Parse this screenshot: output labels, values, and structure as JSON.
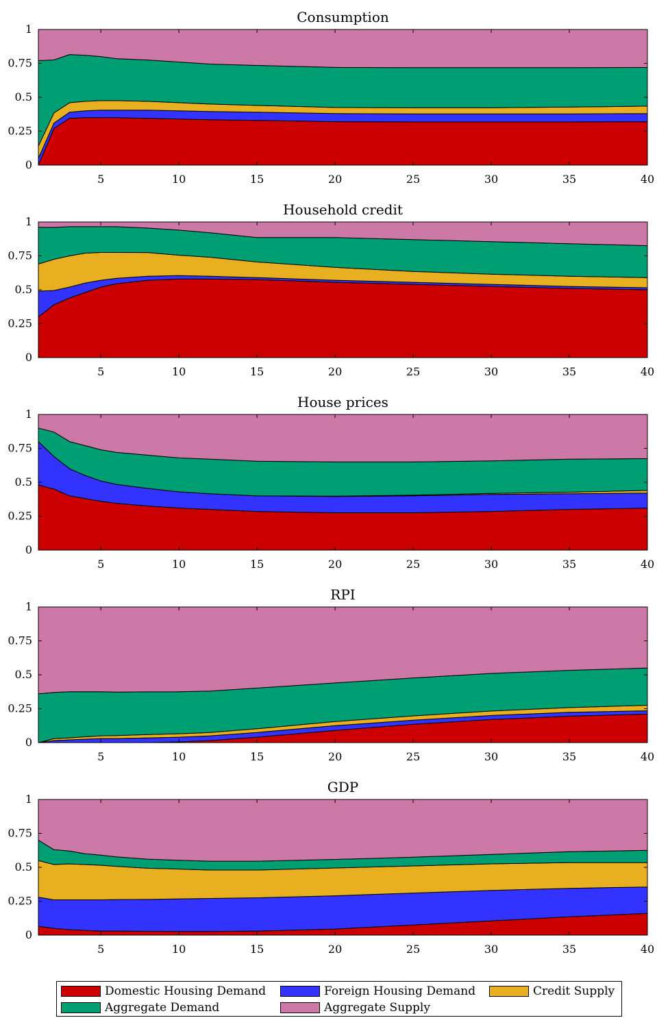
{
  "colors": {
    "Domestic Housing Demand": "#cc0000",
    "Foreign Housing Demand": "#3333ff",
    "Credit Supply": "#e8b020",
    "Aggregate Demand": "#009e73",
    "Aggregate Supply": "#cc79a7"
  },
  "legend": {
    "items": [
      {
        "label": "Domestic Housing Demand"
      },
      {
        "label": "Foreign Housing Demand"
      },
      {
        "label": "Credit Supply"
      },
      {
        "label": "Aggregate Demand"
      },
      {
        "label": "Aggregate Supply"
      }
    ]
  },
  "chart_data": [
    {
      "type": "area",
      "title": "Consumption",
      "xlim": [
        1,
        40
      ],
      "ylim": [
        0,
        1
      ],
      "x": [
        1,
        2,
        3,
        4,
        5,
        6,
        8,
        10,
        12,
        15,
        20,
        25,
        30,
        35,
        40
      ],
      "xticks": [
        5,
        10,
        15,
        20,
        25,
        30,
        35,
        40
      ],
      "yticks": [
        0,
        0.25,
        0.5,
        0.75,
        1
      ],
      "ytick_labels": [
        "0",
        "0.25",
        "0.5",
        "0.75",
        "1"
      ],
      "series": [
        {
          "name": "Domestic Housing Demand",
          "values": [
            0.0,
            0.27,
            0.345,
            0.35,
            0.35,
            0.35,
            0.345,
            0.34,
            0.335,
            0.33,
            0.32,
            0.318,
            0.318,
            0.318,
            0.32
          ]
        },
        {
          "name": "Foreign Housing Demand",
          "values": [
            0.05,
            0.04,
            0.045,
            0.05,
            0.055,
            0.055,
            0.06,
            0.06,
            0.06,
            0.06,
            0.06,
            0.06,
            0.06,
            0.06,
            0.06
          ]
        },
        {
          "name": "Credit Supply",
          "values": [
            0.09,
            0.075,
            0.07,
            0.07,
            0.07,
            0.07,
            0.065,
            0.06,
            0.055,
            0.05,
            0.045,
            0.045,
            0.045,
            0.05,
            0.055
          ]
        },
        {
          "name": "Aggregate Demand",
          "values": [
            0.63,
            0.39,
            0.355,
            0.34,
            0.325,
            0.31,
            0.305,
            0.3,
            0.295,
            0.295,
            0.295,
            0.295,
            0.295,
            0.29,
            0.285
          ]
        },
        {
          "name": "Aggregate Supply",
          "values": [
            0.23,
            0.225,
            0.185,
            0.19,
            0.2,
            0.215,
            0.225,
            0.24,
            0.255,
            0.265,
            0.28,
            0.282,
            0.282,
            0.282,
            0.28
          ]
        }
      ]
    },
    {
      "type": "area",
      "title": "Household credit",
      "xlim": [
        1,
        40
      ],
      "ylim": [
        0,
        1
      ],
      "x": [
        1,
        2,
        3,
        4,
        5,
        6,
        8,
        10,
        12,
        15,
        20,
        25,
        30,
        35,
        40
      ],
      "xticks": [
        5,
        10,
        15,
        20,
        25,
        30,
        35,
        40
      ],
      "yticks": [
        0,
        0.25,
        0.5,
        0.75,
        1
      ],
      "ytick_labels": [
        "0",
        "0.25",
        "0.5",
        "0.75",
        "1"
      ],
      "series": [
        {
          "name": "Domestic Housing Demand",
          "values": [
            0.3,
            0.39,
            0.44,
            0.48,
            0.52,
            0.545,
            0.57,
            0.58,
            0.58,
            0.575,
            0.555,
            0.54,
            0.525,
            0.51,
            0.5
          ]
        },
        {
          "name": "Foreign Housing Demand",
          "values": [
            0.19,
            0.105,
            0.08,
            0.07,
            0.05,
            0.04,
            0.03,
            0.025,
            0.02,
            0.015,
            0.015,
            0.015,
            0.015,
            0.015,
            0.015
          ]
        },
        {
          "name": "Credit Supply",
          "values": [
            0.2,
            0.23,
            0.23,
            0.22,
            0.205,
            0.19,
            0.175,
            0.15,
            0.14,
            0.115,
            0.095,
            0.08,
            0.075,
            0.075,
            0.075
          ]
        },
        {
          "name": "Aggregate Demand",
          "values": [
            0.27,
            0.235,
            0.215,
            0.195,
            0.19,
            0.19,
            0.18,
            0.185,
            0.18,
            0.18,
            0.22,
            0.235,
            0.24,
            0.24,
            0.235
          ]
        },
        {
          "name": "Aggregate Supply",
          "values": [
            0.04,
            0.04,
            0.035,
            0.035,
            0.035,
            0.035,
            0.045,
            0.06,
            0.08,
            0.115,
            0.115,
            0.13,
            0.145,
            0.16,
            0.175
          ]
        }
      ]
    },
    {
      "type": "area",
      "title": "House prices",
      "xlim": [
        1,
        40
      ],
      "ylim": [
        0,
        1
      ],
      "x": [
        1,
        2,
        3,
        4,
        5,
        6,
        8,
        10,
        12,
        15,
        20,
        25,
        30,
        35,
        40
      ],
      "xticks": [
        5,
        10,
        15,
        20,
        25,
        30,
        35,
        40
      ],
      "yticks": [
        0,
        0.25,
        0.5,
        0.75,
        1
      ],
      "ytick_labels": [
        "0",
        "0.25",
        "0.5",
        "0.75",
        "1"
      ],
      "series": [
        {
          "name": "Domestic Housing Demand",
          "values": [
            0.48,
            0.45,
            0.4,
            0.38,
            0.36,
            0.345,
            0.325,
            0.31,
            0.3,
            0.285,
            0.275,
            0.275,
            0.285,
            0.3,
            0.31
          ]
        },
        {
          "name": "Foreign Housing Demand",
          "values": [
            0.32,
            0.24,
            0.2,
            0.17,
            0.15,
            0.14,
            0.13,
            0.12,
            0.115,
            0.115,
            0.12,
            0.125,
            0.125,
            0.115,
            0.11
          ]
        },
        {
          "name": "Credit Supply",
          "values": [
            0.0,
            0.0,
            0.0,
            0.0,
            0.0,
            0.0,
            0.0,
            0.0,
            0.0,
            0.0,
            0.003,
            0.005,
            0.008,
            0.012,
            0.02
          ]
        },
        {
          "name": "Aggregate Demand",
          "values": [
            0.1,
            0.18,
            0.2,
            0.22,
            0.23,
            0.235,
            0.245,
            0.25,
            0.255,
            0.255,
            0.252,
            0.245,
            0.24,
            0.243,
            0.235
          ]
        },
        {
          "name": "Aggregate Supply",
          "values": [
            0.1,
            0.13,
            0.2,
            0.23,
            0.26,
            0.28,
            0.3,
            0.32,
            0.33,
            0.345,
            0.35,
            0.35,
            0.342,
            0.33,
            0.325
          ]
        }
      ]
    },
    {
      "type": "area",
      "title": "RPI",
      "xlim": [
        1,
        40
      ],
      "ylim": [
        0,
        1
      ],
      "x": [
        1,
        2,
        3,
        4,
        5,
        6,
        8,
        10,
        12,
        15,
        20,
        25,
        30,
        35,
        40
      ],
      "xticks": [
        5,
        10,
        15,
        20,
        25,
        30,
        35,
        40
      ],
      "yticks": [
        0,
        0.25,
        0.5,
        0.75,
        1
      ],
      "ytick_labels": [
        "0",
        "0.25",
        "0.5",
        "0.75",
        "1"
      ],
      "series": [
        {
          "name": "Domestic Housing Demand",
          "values": [
            0.0,
            0.0,
            0.0,
            0.0,
            0.0,
            0.0,
            0.0,
            0.005,
            0.015,
            0.04,
            0.09,
            0.135,
            0.17,
            0.195,
            0.21
          ]
        },
        {
          "name": "Foreign Housing Demand",
          "values": [
            0.0,
            0.015,
            0.02,
            0.025,
            0.03,
            0.03,
            0.035,
            0.035,
            0.035,
            0.035,
            0.035,
            0.03,
            0.03,
            0.028,
            0.025
          ]
        },
        {
          "name": "Credit Supply",
          "values": [
            0.0,
            0.015,
            0.015,
            0.018,
            0.02,
            0.022,
            0.024,
            0.025,
            0.025,
            0.027,
            0.03,
            0.032,
            0.033,
            0.035,
            0.04
          ]
        },
        {
          "name": "Aggregate Demand",
          "values": [
            0.36,
            0.34,
            0.34,
            0.332,
            0.325,
            0.32,
            0.315,
            0.31,
            0.305,
            0.3,
            0.285,
            0.28,
            0.277,
            0.275,
            0.275
          ]
        },
        {
          "name": "Aggregate Supply",
          "values": [
            0.64,
            0.63,
            0.625,
            0.625,
            0.625,
            0.628,
            0.626,
            0.625,
            0.62,
            0.598,
            0.56,
            0.523,
            0.49,
            0.467,
            0.45
          ]
        }
      ]
    },
    {
      "type": "area",
      "title": "GDP",
      "xlim": [
        1,
        40
      ],
      "ylim": [
        0,
        1
      ],
      "x": [
        1,
        2,
        3,
        4,
        5,
        6,
        8,
        10,
        12,
        15,
        20,
        25,
        30,
        35,
        40
      ],
      "xticks": [
        5,
        10,
        15,
        20,
        25,
        30,
        35,
        40
      ],
      "yticks": [
        0,
        0.25,
        0.5,
        0.75,
        1
      ],
      "ytick_labels": [
        "0",
        "0.25",
        "0.5",
        "0.75",
        "1"
      ],
      "series": [
        {
          "name": "Domestic Housing Demand",
          "values": [
            0.065,
            0.05,
            0.04,
            0.035,
            0.03,
            0.03,
            0.028,
            0.027,
            0.027,
            0.03,
            0.045,
            0.075,
            0.105,
            0.135,
            0.16
          ]
        },
        {
          "name": "Foreign Housing Demand",
          "values": [
            0.215,
            0.21,
            0.22,
            0.225,
            0.23,
            0.232,
            0.235,
            0.24,
            0.243,
            0.245,
            0.245,
            0.235,
            0.225,
            0.21,
            0.195
          ]
        },
        {
          "name": "Credit Supply",
          "values": [
            0.27,
            0.26,
            0.265,
            0.26,
            0.255,
            0.245,
            0.23,
            0.22,
            0.21,
            0.205,
            0.205,
            0.2,
            0.195,
            0.19,
            0.18
          ]
        },
        {
          "name": "Aggregate Demand",
          "values": [
            0.15,
            0.11,
            0.095,
            0.08,
            0.075,
            0.07,
            0.067,
            0.065,
            0.065,
            0.065,
            0.063,
            0.065,
            0.07,
            0.08,
            0.09
          ]
        },
        {
          "name": "Aggregate Supply",
          "values": [
            0.3,
            0.37,
            0.38,
            0.4,
            0.41,
            0.423,
            0.44,
            0.448,
            0.455,
            0.455,
            0.442,
            0.425,
            0.405,
            0.385,
            0.375
          ]
        }
      ]
    }
  ]
}
